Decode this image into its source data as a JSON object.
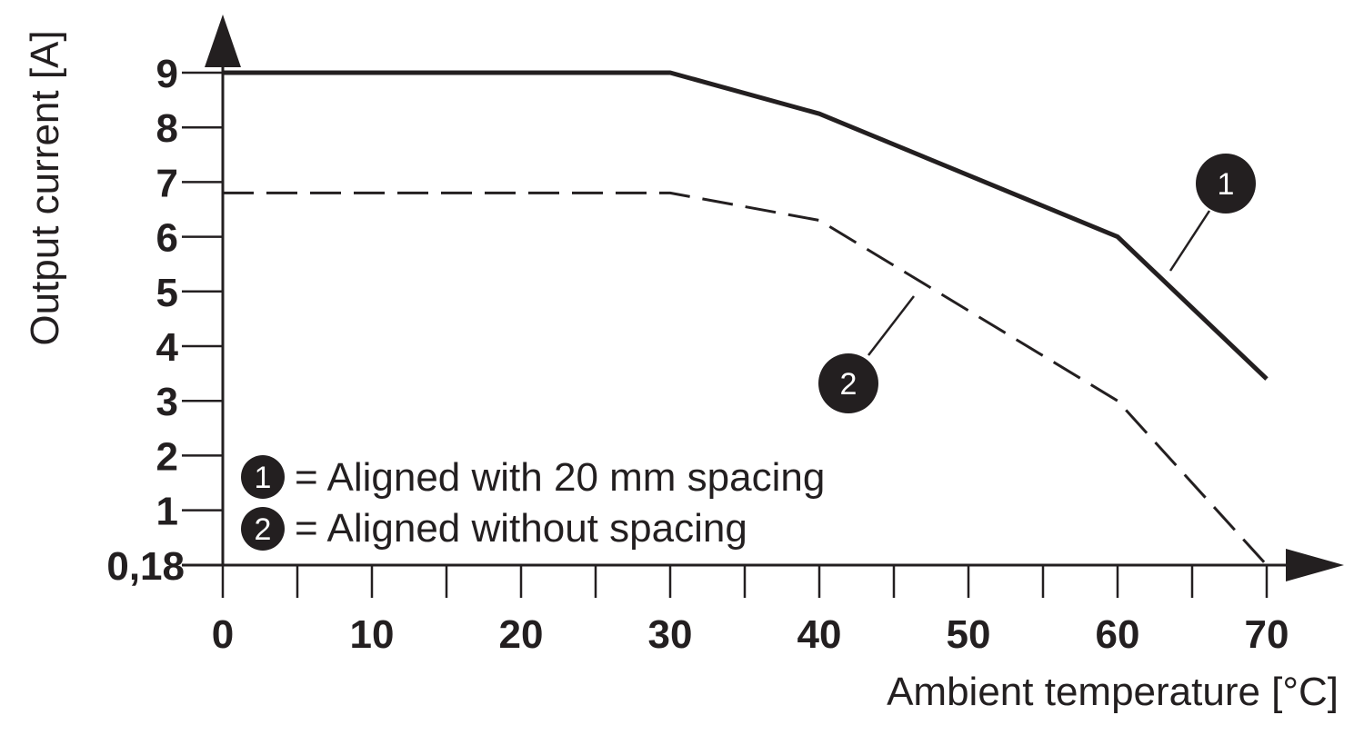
{
  "chart_data": {
    "type": "line",
    "xlabel": "Ambient temperature [°C]",
    "ylabel": "Output current [A]",
    "xlim": [
      0,
      70
    ],
    "ylim": [
      0.18,
      9
    ],
    "x_ticks": [
      "0",
      "10",
      "20",
      "30",
      "40",
      "50",
      "60",
      "70"
    ],
    "y_ticks": [
      "0,18",
      "1",
      "2",
      "3",
      "4",
      "5",
      "6",
      "7",
      "8",
      "9"
    ],
    "y_tick_values": [
      0.18,
      1,
      2,
      3,
      4,
      5,
      6,
      7,
      8,
      9
    ],
    "grid": false,
    "series": [
      {
        "name": "1",
        "style": "solid",
        "points": [
          [
            0,
            9
          ],
          [
            30,
            9
          ],
          [
            40,
            8.25
          ],
          [
            60,
            6
          ],
          [
            70,
            3.4
          ]
        ]
      },
      {
        "name": "2",
        "style": "dashed",
        "points": [
          [
            0,
            6.8
          ],
          [
            30,
            6.8
          ],
          [
            40,
            6.3
          ],
          [
            60,
            3
          ],
          [
            70,
            0.18
          ]
        ]
      }
    ],
    "legend": {
      "placement": "bottom-left",
      "items": [
        {
          "badge": "1",
          "text": "= Aligned with 20 mm spacing"
        },
        {
          "badge": "2",
          "text": "= Aligned without spacing"
        }
      ]
    }
  },
  "colors": {
    "ink": "#231f20",
    "background": "#ffffff"
  }
}
